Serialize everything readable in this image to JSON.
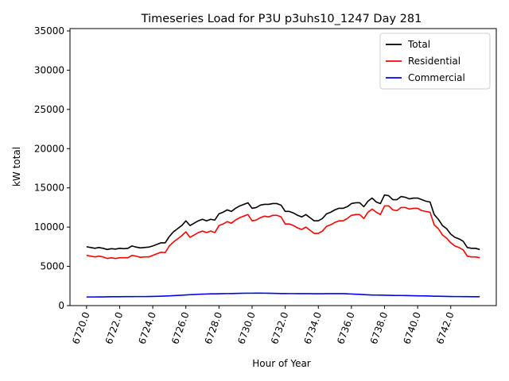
{
  "chart_data": {
    "type": "line",
    "title": "Timeseries Load for P3U p3uhs10_1247  Day 281",
    "xlabel": "Hour of Year",
    "ylabel": "kW total",
    "xlim": [
      6719.0,
      6744.75
    ],
    "ylim": [
      0,
      35300
    ],
    "xticks": [
      6720,
      6722,
      6724,
      6726,
      6728,
      6730,
      6732,
      6734,
      6736,
      6738,
      6740,
      6742
    ],
    "xtick_labels": [
      "6720.0",
      "6722.0",
      "6724.0",
      "6726.0",
      "6728.0",
      "6730.0",
      "6732.0",
      "6734.0",
      "6736.0",
      "6738.0",
      "6740.0",
      "6742.0"
    ],
    "yticks": [
      0,
      5000,
      10000,
      15000,
      20000,
      25000,
      30000,
      35000
    ],
    "ytick_labels": [
      "0",
      "5000",
      "10000",
      "15000",
      "20000",
      "25000",
      "30000",
      "35000"
    ],
    "legend_position": "top-right",
    "x": [
      6720.0,
      6720.25,
      6720.5,
      6720.75,
      6721.0,
      6721.25,
      6721.5,
      6721.75,
      6722.0,
      6722.25,
      6722.5,
      6722.75,
      6723.0,
      6723.25,
      6723.5,
      6723.75,
      6724.0,
      6724.25,
      6724.5,
      6724.75,
      6725.0,
      6725.25,
      6725.5,
      6725.75,
      6726.0,
      6726.25,
      6726.5,
      6726.75,
      6727.0,
      6727.25,
      6727.5,
      6727.75,
      6728.0,
      6728.25,
      6728.5,
      6728.75,
      6729.0,
      6729.25,
      6729.5,
      6729.75,
      6730.0,
      6730.25,
      6730.5,
      6730.75,
      6731.0,
      6731.25,
      6731.5,
      6731.75,
      6732.0,
      6732.25,
      6732.5,
      6732.75,
      6733.0,
      6733.25,
      6733.5,
      6733.75,
      6734.0,
      6734.25,
      6734.5,
      6734.75,
      6735.0,
      6735.25,
      6735.5,
      6735.75,
      6736.0,
      6736.25,
      6736.5,
      6736.75,
      6737.0,
      6737.25,
      6737.5,
      6737.75,
      6738.0,
      6738.25,
      6738.5,
      6738.75,
      6739.0,
      6739.25,
      6739.5,
      6739.75,
      6740.0,
      6740.25,
      6740.5,
      6740.75,
      6741.0,
      6741.25,
      6741.5,
      6741.75,
      6742.0,
      6742.25,
      6742.5,
      6742.75,
      6743.0,
      6743.25,
      6743.5,
      6743.75
    ],
    "series": [
      {
        "name": "Total",
        "color": "#000000",
        "values": [
          7500,
          7400,
          7300,
          7400,
          7300,
          7150,
          7250,
          7200,
          7300,
          7250,
          7300,
          7600,
          7450,
          7350,
          7400,
          7450,
          7600,
          7800,
          8000,
          8000,
          8800,
          9400,
          9800,
          10200,
          10800,
          10200,
          10500,
          10800,
          11000,
          10800,
          11000,
          10900,
          11700,
          11900,
          12200,
          12000,
          12400,
          12700,
          12900,
          13100,
          12400,
          12500,
          12800,
          12900,
          12900,
          13000,
          13000,
          12800,
          12000,
          12000,
          11800,
          11500,
          11300,
          11600,
          11200,
          10800,
          10800,
          11100,
          11700,
          11900,
          12200,
          12400,
          12400,
          12600,
          13000,
          13100,
          13100,
          12600,
          13300,
          13700,
          13200,
          13000,
          14100,
          14000,
          13500,
          13500,
          13900,
          13800,
          13600,
          13700,
          13700,
          13500,
          13300,
          13200,
          11600,
          11000,
          10200,
          9800,
          9100,
          8700,
          8500,
          8200,
          7400,
          7300,
          7300,
          7150
        ]
      },
      {
        "name": "Residential",
        "color": "#ff0000",
        "values": [
          6400,
          6300,
          6200,
          6300,
          6200,
          6000,
          6100,
          6000,
          6100,
          6100,
          6100,
          6400,
          6300,
          6150,
          6200,
          6200,
          6400,
          6600,
          6800,
          6750,
          7600,
          8100,
          8500,
          8900,
          9400,
          8700,
          9000,
          9300,
          9500,
          9300,
          9500,
          9300,
          10200,
          10400,
          10700,
          10500,
          10900,
          11200,
          11400,
          11600,
          10800,
          10900,
          11200,
          11400,
          11300,
          11500,
          11500,
          11300,
          10400,
          10400,
          10200,
          9900,
          9700,
          10000,
          9600,
          9200,
          9200,
          9500,
          10100,
          10300,
          10600,
          10800,
          10800,
          11100,
          11500,
          11600,
          11600,
          11100,
          11900,
          12300,
          11900,
          11600,
          12700,
          12700,
          12200,
          12100,
          12500,
          12500,
          12300,
          12400,
          12400,
          12100,
          12000,
          11900,
          10300,
          9800,
          9000,
          8600,
          8000,
          7600,
          7400,
          7100,
          6300,
          6200,
          6200,
          6100
        ]
      },
      {
        "name": "Commercial",
        "color": "#0000ff",
        "values": [
          1100,
          1100,
          1100,
          1110,
          1110,
          1120,
          1130,
          1130,
          1130,
          1140,
          1140,
          1140,
          1150,
          1150,
          1150,
          1160,
          1170,
          1180,
          1200,
          1220,
          1240,
          1270,
          1300,
          1320,
          1360,
          1390,
          1410,
          1440,
          1460,
          1480,
          1500,
          1500,
          1510,
          1520,
          1530,
          1540,
          1550,
          1560,
          1570,
          1580,
          1580,
          1590,
          1590,
          1580,
          1570,
          1560,
          1550,
          1540,
          1540,
          1530,
          1530,
          1520,
          1520,
          1520,
          1520,
          1510,
          1510,
          1510,
          1520,
          1520,
          1520,
          1520,
          1520,
          1500,
          1480,
          1450,
          1430,
          1400,
          1370,
          1350,
          1340,
          1330,
          1320,
          1310,
          1300,
          1290,
          1290,
          1280,
          1270,
          1260,
          1250,
          1240,
          1230,
          1220,
          1200,
          1190,
          1180,
          1170,
          1160,
          1150,
          1150,
          1140,
          1140,
          1130,
          1130,
          1130
        ]
      }
    ]
  }
}
